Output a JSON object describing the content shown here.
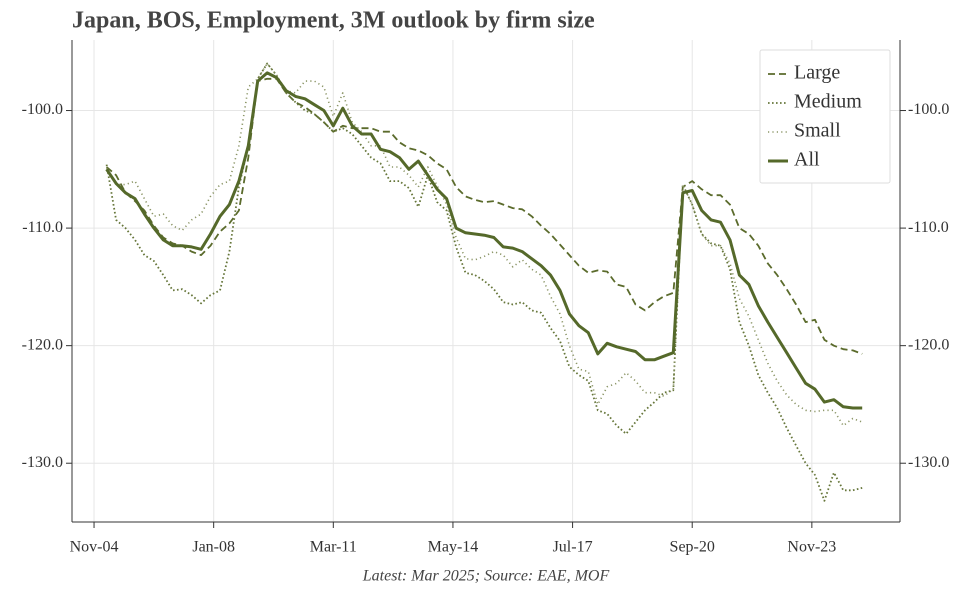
{
  "chart_data": {
    "type": "line",
    "title": "Japan, BOS, Employment, 3M outlook by firm size",
    "source": "Latest: Mar 2025; Source: EAE, MOF",
    "x": [
      "2005-03",
      "2005-06",
      "2005-09",
      "2005-12",
      "2006-03",
      "2006-06",
      "2006-09",
      "2006-12",
      "2007-03",
      "2007-06",
      "2007-09",
      "2007-12",
      "2008-03",
      "2008-06",
      "2008-09",
      "2008-12",
      "2009-03",
      "2009-06",
      "2009-09",
      "2009-12",
      "2010-03",
      "2010-06",
      "2010-09",
      "2010-12",
      "2011-03",
      "2011-06",
      "2011-09",
      "2011-12",
      "2012-03",
      "2012-06",
      "2012-09",
      "2012-12",
      "2013-03",
      "2013-06",
      "2013-09",
      "2013-12",
      "2014-03",
      "2014-06",
      "2014-09",
      "2014-12",
      "2015-03",
      "2015-06",
      "2015-09",
      "2015-12",
      "2016-03",
      "2016-06",
      "2016-09",
      "2016-12",
      "2017-03",
      "2017-06",
      "2017-09",
      "2017-12",
      "2018-03",
      "2018-06",
      "2018-09",
      "2018-12",
      "2019-03",
      "2019-06",
      "2019-09",
      "2019-12",
      "2020-03",
      "2020-06",
      "2020-09",
      "2020-12",
      "2021-03",
      "2021-06",
      "2021-09",
      "2021-12",
      "2022-03",
      "2022-06",
      "2022-09",
      "2022-12",
      "2023-03",
      "2023-06",
      "2023-09",
      "2023-12",
      "2024-03",
      "2024-06",
      "2024-09",
      "2024-12",
      "2025-03"
    ],
    "series": [
      {
        "name": "Large",
        "color": "#5b6b2c",
        "style": "dashed",
        "width": 1.8,
        "values": [
          -104.8,
          -105.5,
          -107,
          -107.7,
          -108.5,
          -109.8,
          -110.8,
          -111.3,
          -111.5,
          -112,
          -112.3,
          -111.5,
          -110.3,
          -109.6,
          -108.5,
          -104,
          -97.5,
          -97.3,
          -97.3,
          -98.5,
          -99.3,
          -99.7,
          -100.3,
          -101,
          -101.8,
          -101.3,
          -101.5,
          -101.5,
          -101.5,
          -101.8,
          -101.8,
          -102.7,
          -103.2,
          -103.4,
          -103.8,
          -104.5,
          -105,
          -106.5,
          -107.3,
          -107.6,
          -107.8,
          -107.7,
          -108,
          -108.3,
          -108.4,
          -109,
          -109.8,
          -110.5,
          -111.4,
          -112.3,
          -113.2,
          -113.8,
          -113.6,
          -113.7,
          -114.8,
          -115,
          -116.5,
          -117,
          -116.3,
          -115.8,
          -115.5,
          -106.5,
          -106,
          -106.7,
          -107.2,
          -107.2,
          -108,
          -110,
          -110.5,
          -111.5,
          -113,
          -114,
          -115.2,
          -116.5,
          -118,
          -117.8,
          -119.5,
          -120,
          -120.3,
          -120.4,
          -120.7
        ]
      },
      {
        "name": "Medium",
        "color": "#66763a",
        "style": "dotted",
        "width": 1.8,
        "values": [
          -104.6,
          -109.3,
          -110,
          -111,
          -112.3,
          -112.8,
          -114,
          -115.3,
          -115.2,
          -115.7,
          -116.4,
          -115.7,
          -115.3,
          -112,
          -106.5,
          -103,
          -97.3,
          -96,
          -97,
          -98.5,
          -99.3,
          -100,
          -100.3,
          -101,
          -101.8,
          -101.5,
          -102,
          -103,
          -104,
          -104.5,
          -106,
          -106,
          -106.6,
          -108.2,
          -105.5,
          -107.8,
          -108.5,
          -111.6,
          -113.8,
          -114,
          -114.5,
          -115.2,
          -116.3,
          -116.5,
          -116.3,
          -117,
          -117.2,
          -118.5,
          -119.6,
          -121.8,
          -122.5,
          -123,
          -125.5,
          -125.8,
          -126.8,
          -127.5,
          -126.5,
          -125.5,
          -124.8,
          -124,
          -123.8,
          -106.3,
          -108,
          -110.5,
          -111.3,
          -111.5,
          -113.5,
          -118,
          -120,
          -122.5,
          -124,
          -125.3,
          -127,
          -128.5,
          -130,
          -131,
          -133.2,
          -130.8,
          -132.3,
          -132.3,
          -132.1
        ]
      },
      {
        "name": "Small",
        "color": "#8b9566",
        "style": "sparse",
        "width": 1.6,
        "values": [
          -104.9,
          -106.3,
          -106.3,
          -106,
          -107.5,
          -109,
          -108.8,
          -109.8,
          -110.2,
          -109.3,
          -108.8,
          -107.3,
          -106.3,
          -106,
          -103,
          -98,
          -97.3,
          -96,
          -97,
          -98.3,
          -98.5,
          -97.5,
          -97.5,
          -98,
          -100.5,
          -98.5,
          -101,
          -101.8,
          -103,
          -103,
          -104.8,
          -104.8,
          -105.5,
          -106.5,
          -104.8,
          -106.4,
          -108,
          -110.8,
          -112.6,
          -112.7,
          -112.4,
          -112,
          -112.3,
          -113.3,
          -112.7,
          -113.5,
          -114,
          -115.8,
          -117.3,
          -120,
          -122,
          -122.2,
          -125,
          -123.5,
          -123.2,
          -122.3,
          -123,
          -124,
          -124,
          -124.3,
          -123.7,
          -106.3,
          -108,
          -110.5,
          -111.5,
          -111.5,
          -113,
          -116,
          -117.5,
          -119.5,
          -121.5,
          -123,
          -124.2,
          -125,
          -125.5,
          -125.6,
          -125.5,
          -125.5,
          -126.8,
          -126.2,
          -126.5
        ]
      },
      {
        "name": "All",
        "color": "#55692a",
        "style": "solid",
        "width": 3,
        "values": [
          -105,
          -106.2,
          -107,
          -107.5,
          -108.8,
          -110,
          -111,
          -111.5,
          -111.5,
          -111.6,
          -111.8,
          -110.5,
          -109,
          -108,
          -106,
          -103,
          -97.5,
          -96.8,
          -97.2,
          -98.3,
          -98.8,
          -99,
          -99.5,
          -100,
          -101.3,
          -99.8,
          -101.3,
          -102,
          -102,
          -103.3,
          -103.5,
          -104,
          -105,
          -104.3,
          -105.5,
          -106.7,
          -107.5,
          -110,
          -110.4,
          -110.5,
          -110.6,
          -110.8,
          -111.6,
          -111.7,
          -112,
          -112.6,
          -113.2,
          -114,
          -115.3,
          -117.3,
          -118.3,
          -118.9,
          -120.7,
          -119.8,
          -120.1,
          -120.3,
          -120.5,
          -121.2,
          -121.2,
          -120.9,
          -120.6,
          -107,
          -106.8,
          -108.5,
          -109.3,
          -109.5,
          -111,
          -114,
          -114.8,
          -116.6,
          -118,
          -119.3,
          -120.6,
          -121.9,
          -123.2,
          -123.7,
          -124.8,
          -124.6,
          -125.2,
          -125.3,
          -125.3
        ]
      }
    ],
    "xlim": [
      "2004-04",
      "2026-03"
    ],
    "xticks": [
      {
        "value": "2004-11",
        "label": "Nov-04"
      },
      {
        "value": "2008-01",
        "label": "Jan-08"
      },
      {
        "value": "2011-03",
        "label": "Mar-11"
      },
      {
        "value": "2014-05",
        "label": "May-14"
      },
      {
        "value": "2017-07",
        "label": "Jul-17"
      },
      {
        "value": "2020-09",
        "label": "Sep-20"
      },
      {
        "value": "2023-11",
        "label": "Nov-23"
      }
    ],
    "ylim": [
      -135,
      -94
    ],
    "yticks": [
      {
        "value": -130,
        "label": "-130.0"
      },
      {
        "value": -120,
        "label": "-120.0"
      },
      {
        "value": -110,
        "label": "-110.0"
      },
      {
        "value": -100,
        "label": "-100.0"
      }
    ],
    "grid": true,
    "legend": "upper right"
  }
}
